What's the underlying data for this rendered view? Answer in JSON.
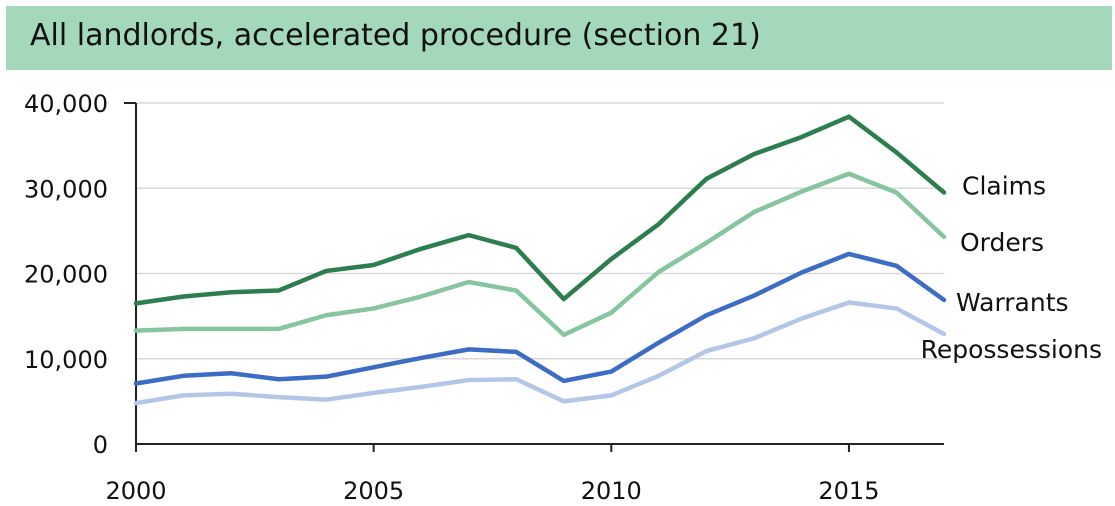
{
  "chart_data": {
    "type": "line",
    "title": "All landlords, accelerated procedure (section 21)",
    "xlabel": "",
    "ylabel": "",
    "x": [
      2000,
      2001,
      2002,
      2003,
      2004,
      2005,
      2006,
      2007,
      2008,
      2009,
      2010,
      2011,
      2012,
      2013,
      2014,
      2015,
      2016,
      2017
    ],
    "xlim": [
      2000,
      2017
    ],
    "ylim": [
      0,
      40000
    ],
    "x_ticks": [
      "2000",
      "2005",
      "2010",
      "2015"
    ],
    "y_ticks": [
      "0",
      "10,000",
      "20,000",
      "30,000",
      "40,000"
    ],
    "grid": "horizontal",
    "legend": "direct labels at line ends",
    "series": [
      {
        "name": "Claims",
        "color": "#2e7d4f",
        "values": [
          16500,
          17300,
          17800,
          18000,
          20300,
          21000,
          22900,
          24500,
          23000,
          17000,
          21700,
          25800,
          31100,
          34000,
          36000,
          38400,
          34200,
          29500
        ]
      },
      {
        "name": "Orders",
        "color": "#86c5a0",
        "values": [
          13300,
          13500,
          13500,
          13500,
          15100,
          15900,
          17300,
          19000,
          18000,
          12800,
          15400,
          20200,
          23600,
          27200,
          29600,
          31700,
          29500,
          24300
        ]
      },
      {
        "name": "Warrants",
        "color": "#3d6cc4",
        "values": [
          7100,
          8000,
          8300,
          7600,
          7900,
          9000,
          10100,
          11100,
          10800,
          7400,
          8500,
          11900,
          15100,
          17400,
          20100,
          22300,
          20900,
          16900
        ]
      },
      {
        "name": "Repossessions",
        "color": "#b4c6e8",
        "values": [
          4800,
          5700,
          5900,
          5500,
          5200,
          6000,
          6700,
          7500,
          7600,
          5000,
          5700,
          8000,
          10900,
          12400,
          14700,
          16600,
          15900,
          12900
        ]
      }
    ]
  }
}
